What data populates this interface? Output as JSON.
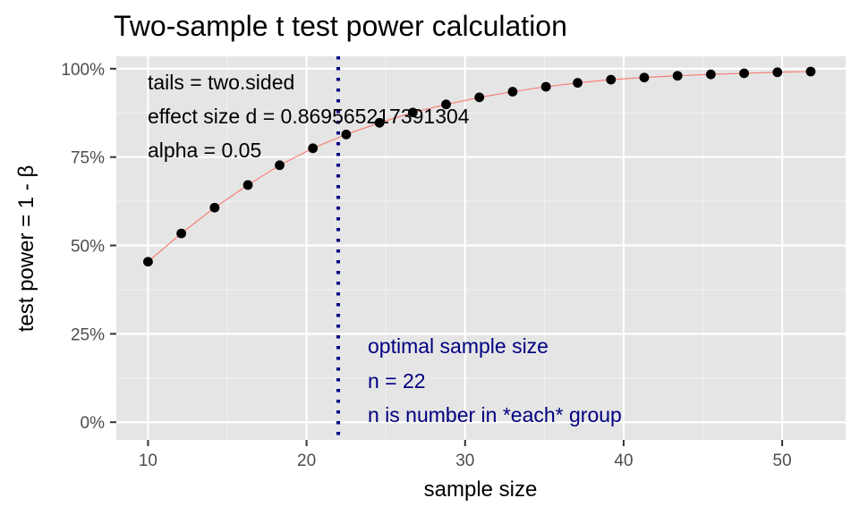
{
  "chart_data": {
    "type": "line",
    "title": "Two-sample t test power calculation",
    "xlabel": "sample size",
    "ylabel": "test power = 1 - β",
    "xlim": [
      8,
      54
    ],
    "ylim": [
      -0.05,
      1.035
    ],
    "x_ticks": [
      10,
      20,
      30,
      40,
      50
    ],
    "x_tick_labels": [
      "10",
      "20",
      "30",
      "40",
      "50"
    ],
    "y_ticks": [
      0,
      0.25,
      0.5,
      0.75,
      1.0
    ],
    "y_tick_labels": [
      "0%",
      "25%",
      "50%",
      "75%",
      "100%"
    ],
    "series": [
      {
        "name": "power",
        "line_color": "#F8766D",
        "point_color": "#000000",
        "x": [
          10,
          12.1,
          14.2,
          16.3,
          18.3,
          20.4,
          22.5,
          24.6,
          26.7,
          28.8,
          30.9,
          33.0,
          35.1,
          37.1,
          39.2,
          41.3,
          43.4,
          45.5,
          47.6,
          49.7,
          51.8
        ],
        "y": [
          0.454,
          0.534,
          0.607,
          0.671,
          0.727,
          0.775,
          0.814,
          0.847,
          0.876,
          0.899,
          0.919,
          0.935,
          0.949,
          0.96,
          0.969,
          0.975,
          0.98,
          0.984,
          0.987,
          0.99,
          0.992
        ]
      }
    ],
    "vline": {
      "x": 22,
      "color": "#000080",
      "style": "dotted"
    },
    "annotations_top": [
      "tails = two.sided",
      "effect size d = 0.869565217391304",
      "alpha = 0.05"
    ],
    "annotations_optimal": [
      "optimal sample size",
      "n = 22",
      "n is number in *each* group"
    ],
    "annotation_color": "#000080",
    "panel_background": "#E5E5E5",
    "grid": true
  }
}
